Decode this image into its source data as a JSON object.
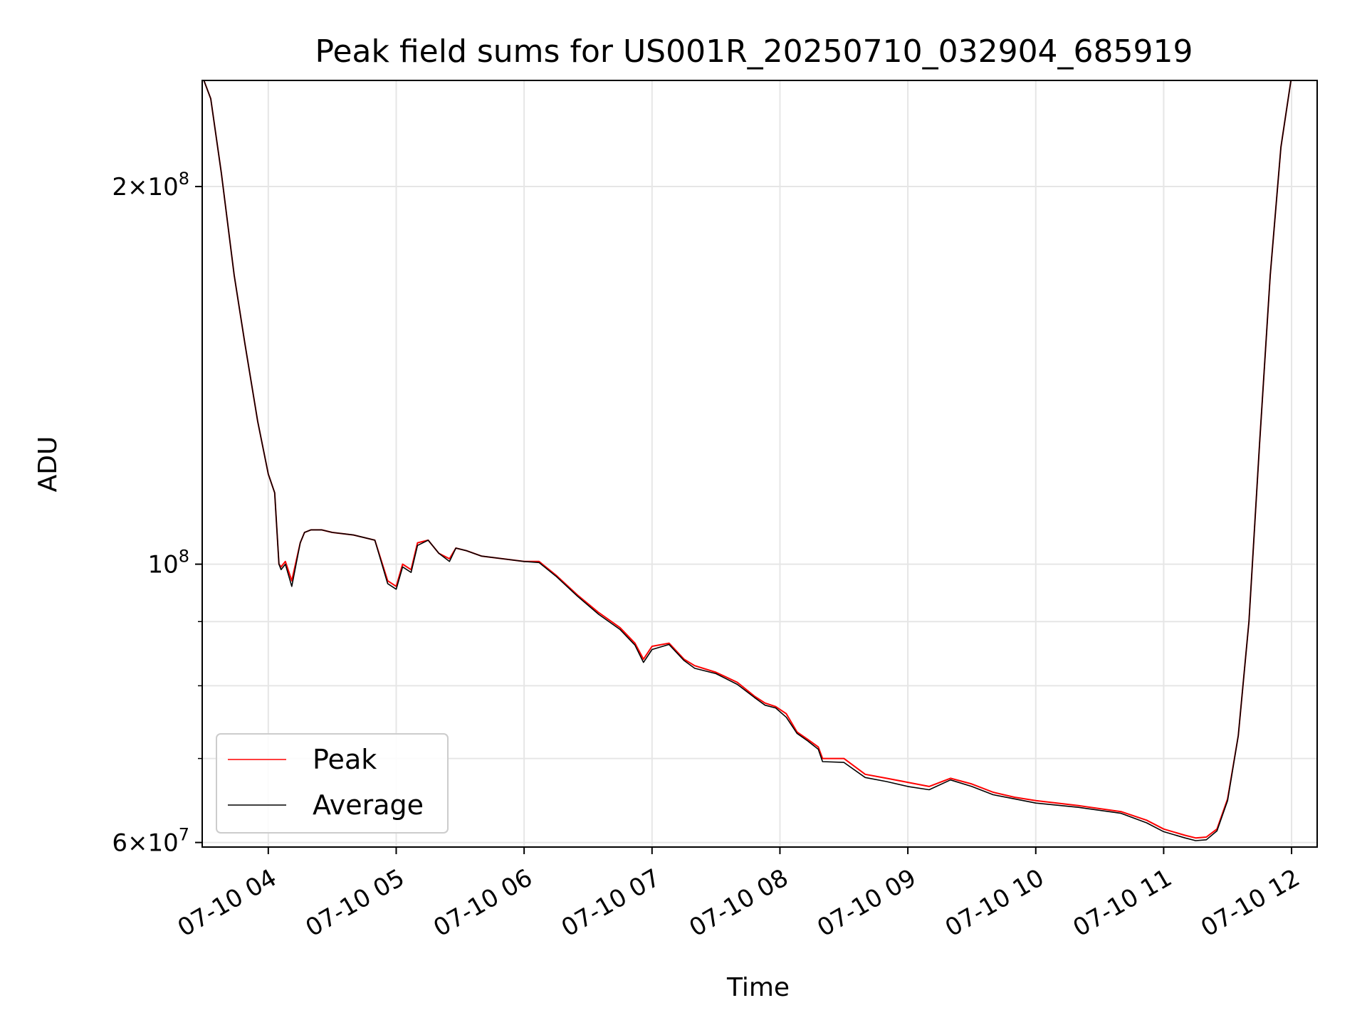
{
  "chart_data": {
    "type": "line",
    "title": "Peak field sums for US001R_20250710_032904_685919",
    "xlabel": "Time",
    "ylabel": "ADU",
    "y_scale": "log",
    "grid": true,
    "legend_position": "lower-left",
    "xlim": [
      "2025-07-10 03:29",
      "2025-07-10 12:12"
    ],
    "ylim": [
      59500000,
      243000000
    ],
    "x_ticks": [
      "07-10 04",
      "07-10 05",
      "07-10 06",
      "07-10 07",
      "07-10 08",
      "07-10 09",
      "07-10 10",
      "07-10 11",
      "07-10 12"
    ],
    "x_tick_times": [
      "2025-07-10 04:00",
      "2025-07-10 05:00",
      "2025-07-10 06:00",
      "2025-07-10 07:00",
      "2025-07-10 08:00",
      "2025-07-10 09:00",
      "2025-07-10 10:00",
      "2025-07-10 11:00",
      "2025-07-10 12:00"
    ],
    "y_ticks": [
      {
        "value": 200000000,
        "mantissa": "2",
        "exp": "8"
      },
      {
        "value": 100000000,
        "mantissa": "",
        "exp": "8"
      },
      {
        "value": 60000000,
        "mantissa": "6",
        "exp": "7"
      }
    ],
    "y_minor_ticks": [
      70000000,
      80000000,
      90000000
    ],
    "x": [
      "2025-07-10 03:29",
      "2025-07-10 03:33",
      "2025-07-10 03:38",
      "2025-07-10 03:44",
      "2025-07-10 03:49",
      "2025-07-10 03:55",
      "2025-07-10 04:00",
      "2025-07-10 04:03",
      "2025-07-10 04:05",
      "2025-07-10 04:06",
      "2025-07-10 04:08",
      "2025-07-10 04:11",
      "2025-07-10 04:15",
      "2025-07-10 04:17",
      "2025-07-10 04:20",
      "2025-07-10 04:25",
      "2025-07-10 04:30",
      "2025-07-10 04:40",
      "2025-07-10 04:50",
      "2025-07-10 04:56",
      "2025-07-10 05:00",
      "2025-07-10 05:03",
      "2025-07-10 05:07",
      "2025-07-10 05:10",
      "2025-07-10 05:15",
      "2025-07-10 05:20",
      "2025-07-10 05:25",
      "2025-07-10 05:28",
      "2025-07-10 05:33",
      "2025-07-10 05:40",
      "2025-07-10 05:50",
      "2025-07-10 06:00",
      "2025-07-10 06:07",
      "2025-07-10 06:15",
      "2025-07-10 06:25",
      "2025-07-10 06:35",
      "2025-07-10 06:45",
      "2025-07-10 06:52",
      "2025-07-10 06:56",
      "2025-07-10 07:00",
      "2025-07-10 07:08",
      "2025-07-10 07:15",
      "2025-07-10 07:20",
      "2025-07-10 07:30",
      "2025-07-10 07:40",
      "2025-07-10 07:48",
      "2025-07-10 07:53",
      "2025-07-10 07:58",
      "2025-07-10 08:03",
      "2025-07-10 08:08",
      "2025-07-10 08:13",
      "2025-07-10 08:18",
      "2025-07-10 08:20",
      "2025-07-10 08:30",
      "2025-07-10 08:40",
      "2025-07-10 08:50",
      "2025-07-10 09:00",
      "2025-07-10 09:10",
      "2025-07-10 09:20",
      "2025-07-10 09:30",
      "2025-07-10 09:40",
      "2025-07-10 09:50",
      "2025-07-10 10:00",
      "2025-07-10 10:20",
      "2025-07-10 10:40",
      "2025-07-10 10:52",
      "2025-07-10 11:00",
      "2025-07-10 11:10",
      "2025-07-10 11:15",
      "2025-07-10 11:20",
      "2025-07-10 11:25",
      "2025-07-10 11:30",
      "2025-07-10 11:35",
      "2025-07-10 11:40",
      "2025-07-10 11:45",
      "2025-07-10 11:50",
      "2025-07-10 11:55",
      "2025-07-10 12:00",
      "2025-07-10 12:02"
    ],
    "series": [
      {
        "name": "Peak",
        "color": "#ff0000",
        "values": [
          245000000,
          235000000,
          205000000,
          170000000,
          150000000,
          130000000,
          118000000,
          114000000,
          100000000,
          99500000,
          100500000,
          97000000,
          104000000,
          106000000,
          106500000,
          106500000,
          106000000,
          105500000,
          104500000,
          97000000,
          96000000,
          100000000,
          99000000,
          104000000,
          104500000,
          102000000,
          101000000,
          103000000,
          102500000,
          101500000,
          101000000,
          100500000,
          100500000,
          98000000,
          94500000,
          91500000,
          89000000,
          86500000,
          84000000,
          86000000,
          86500000,
          84000000,
          83000000,
          82000000,
          80500000,
          78500000,
          77500000,
          77000000,
          76000000,
          73500000,
          72500000,
          71500000,
          70000000,
          70000000,
          68000000,
          67500000,
          67000000,
          66500000,
          67500000,
          66800000,
          65800000,
          65200000,
          64800000,
          64200000,
          63500000,
          62500000,
          61500000,
          60800000,
          60500000,
          60600000,
          61500000,
          65000000,
          73000000,
          90000000,
          125000000,
          170000000,
          215000000,
          245000000,
          245000000
        ]
      },
      {
        "name": "Average",
        "color": "#000000",
        "values": [
          245000000,
          235000000,
          205000000,
          170000000,
          150000000,
          130000000,
          118000000,
          114000000,
          100000000,
          99000000,
          100000000,
          96000000,
          104000000,
          106000000,
          106500000,
          106500000,
          106000000,
          105500000,
          104500000,
          96500000,
          95500000,
          99500000,
          98500000,
          103500000,
          104500000,
          102000000,
          100500000,
          103000000,
          102500000,
          101500000,
          101000000,
          100500000,
          100300000,
          97800000,
          94300000,
          91200000,
          88700000,
          86200000,
          83500000,
          85500000,
          86300000,
          83800000,
          82600000,
          81800000,
          80200000,
          78300000,
          77200000,
          76800000,
          75500000,
          73300000,
          72300000,
          71200000,
          69600000,
          69500000,
          67600000,
          67100000,
          66500000,
          66100000,
          67300000,
          66500000,
          65500000,
          65000000,
          64500000,
          64000000,
          63300000,
          62200000,
          61200000,
          60500000,
          60200000,
          60300000,
          61300000,
          64800000,
          73000000,
          90000000,
          125000000,
          170000000,
          215000000,
          245000000,
          245000000
        ]
      }
    ]
  }
}
